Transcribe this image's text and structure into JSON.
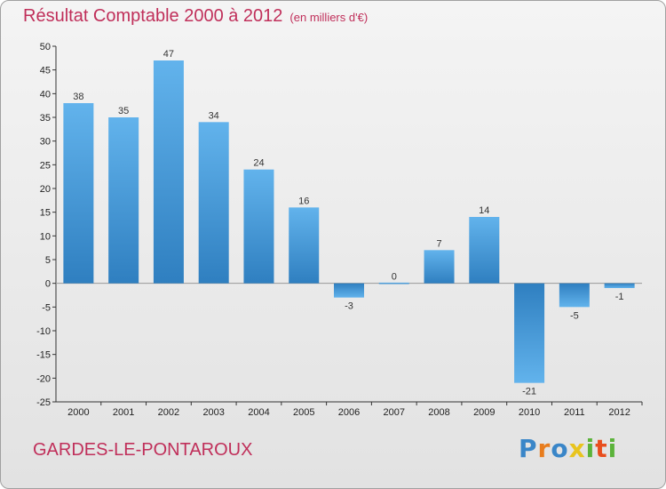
{
  "chart_data": {
    "type": "bar",
    "title": "Résultat Comptable 2000 à 2012",
    "subtitle": "(en milliers d'€)",
    "categories": [
      "2000",
      "2001",
      "2002",
      "2003",
      "2004",
      "2005",
      "2006",
      "2007",
      "2008",
      "2009",
      "2010",
      "2011",
      "2012"
    ],
    "values": [
      38,
      35,
      47,
      34,
      24,
      16,
      -3,
      0,
      7,
      14,
      -21,
      -5,
      -1
    ],
    "ylim": [
      -25,
      50
    ],
    "yticks": [
      -25,
      -20,
      -15,
      -10,
      -5,
      0,
      5,
      10,
      15,
      20,
      25,
      30,
      35,
      40,
      45,
      50
    ],
    "xlabel": "",
    "ylabel": "",
    "grid": false,
    "bar_color_top": "#62b3ec",
    "bar_color_bottom": "#2f7fc0"
  },
  "footer": {
    "commune": "GARDES-LE-PONTAROUX",
    "logo": {
      "letters": [
        "P",
        "r",
        "o",
        "x",
        "i",
        "t",
        "i"
      ],
      "colors": [
        "#3a86c8",
        "#e87d1e",
        "#3a86c8",
        "#e8c41e",
        "#5bb33a",
        "#e84e1e",
        "#5bb33a"
      ],
      "icon": "proxiti-logo-icon"
    }
  },
  "colors": {
    "title": "#c02f5a",
    "axis": "#333333",
    "background": "#ececec"
  }
}
